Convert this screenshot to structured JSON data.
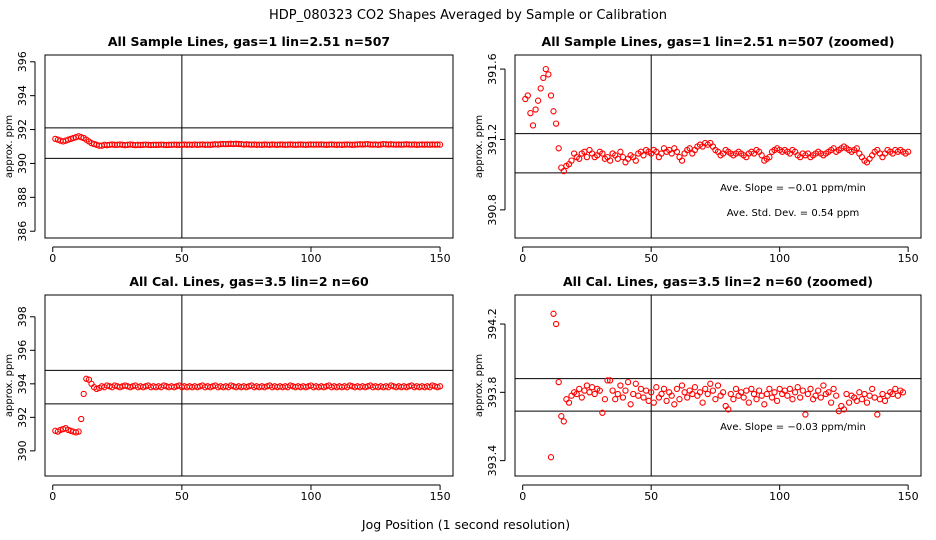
{
  "figure": {
    "title": "HDP_080323  CO2 Shapes Averaged by Sample or Calibration",
    "xlabel": "Jog Position (1 second resolution)"
  },
  "chart_data": [
    {
      "type": "scatter",
      "title": "All Sample Lines, gas=1 lin=2.51 n=507",
      "ylabel": "approx. ppm",
      "xlim": [
        -3,
        155
      ],
      "ylim": [
        385.6,
        396.4
      ],
      "xticks": [
        "0",
        "50",
        "100",
        "150"
      ],
      "yticks": [
        "386",
        "388",
        "390",
        "392",
        "394",
        "396"
      ],
      "hlines": [
        392.1,
        390.3
      ],
      "vline": 50,
      "color": "#ff0000",
      "series": [
        {
          "x_start": 1,
          "x_step": 1,
          "y": [
            391.45,
            391.4,
            391.35,
            391.3,
            391.35,
            391.4,
            391.45,
            391.5,
            391.55,
            391.6,
            391.55,
            391.5,
            391.4,
            391.3,
            391.2,
            391.15,
            391.1,
            391.05,
            391.05,
            391.1,
            391.08,
            391.1,
            391.12,
            391.1,
            391.1,
            391.12,
            391.1,
            391.08,
            391.1,
            391.12,
            391.1,
            391.08,
            391.1,
            391.09,
            391.1,
            391.11,
            391.1,
            391.09,
            391.1,
            391.1,
            391.1,
            391.11,
            391.1,
            391.09,
            391.1,
            391.1,
            391.11,
            391.1,
            391.1,
            391.1,
            391.12,
            391.1,
            391.11,
            391.1,
            391.12,
            391.1,
            391.11,
            391.12,
            391.1,
            391.11,
            391.1,
            391.12,
            391.13,
            391.12,
            391.14,
            391.15,
            391.14,
            391.15,
            391.16,
            391.15,
            391.16,
            391.15,
            391.14,
            391.12,
            391.13,
            391.12,
            391.11,
            391.12,
            391.1,
            391.11,
            391.1,
            391.12,
            391.11,
            391.1,
            391.12,
            391.11,
            391.1,
            391.12,
            391.11,
            391.1,
            391.11,
            391.12,
            391.11,
            391.1,
            391.11,
            391.12,
            391.11,
            391.1,
            391.11,
            391.12,
            391.11,
            391.12,
            391.11,
            391.12,
            391.11,
            391.1,
            391.11,
            391.12,
            391.11,
            391.1,
            391.11,
            391.1,
            391.11,
            391.12,
            391.11,
            391.1,
            391.11,
            391.12,
            391.13,
            391.12,
            391.13,
            391.14,
            391.12,
            391.11,
            391.12,
            391.1,
            391.12,
            391.14,
            391.13,
            391.12,
            391.13,
            391.12,
            391.11,
            391.12,
            391.11,
            391.12,
            391.13,
            391.12,
            391.11,
            391.12,
            391.1,
            391.11,
            391.12,
            391.11,
            391.12,
            391.11,
            391.12,
            391.11,
            391.12,
            391.11
          ]
        }
      ]
    },
    {
      "type": "scatter",
      "title": "All Sample Lines, gas=1 lin=2.51 n=507 (zoomed)",
      "ylabel": "approx. ppm",
      "xlim": [
        -3,
        155
      ],
      "ylim": [
        390.64,
        391.68
      ],
      "xticks": [
        "0",
        "50",
        "100",
        "150"
      ],
      "yticks": [
        "390.8",
        "391.2",
        "391.6"
      ],
      "hlines": [
        391.233,
        391.01
      ],
      "vline": 50,
      "color": "#ff0000",
      "annotations": [
        "Ave. Slope =  −0.01  ppm/min",
        "Ave. Std. Dev. =  0.54  ppm"
      ],
      "series": [
        {
          "x_start": 1,
          "x_step": 1,
          "y": [
            391.43,
            391.45,
            391.35,
            391.28,
            391.37,
            391.42,
            391.49,
            391.55,
            391.6,
            391.57,
            391.45,
            391.36,
            391.29,
            391.15,
            391.04,
            391.02,
            391.05,
            391.06,
            391.08,
            391.12,
            391.1,
            391.09,
            391.12,
            391.13,
            391.1,
            391.14,
            391.12,
            391.1,
            391.11,
            391.13,
            391.12,
            391.09,
            391.1,
            391.08,
            391.12,
            391.11,
            391.09,
            391.13,
            391.1,
            391.07,
            391.09,
            391.11,
            391.1,
            391.08,
            391.12,
            391.13,
            391.11,
            391.14,
            391.13,
            391.12,
            391.14,
            391.13,
            391.1,
            391.12,
            391.15,
            391.13,
            391.14,
            391.12,
            391.15,
            391.13,
            391.1,
            391.08,
            391.12,
            391.14,
            391.15,
            391.12,
            391.14,
            391.16,
            391.17,
            391.16,
            391.18,
            391.17,
            391.18,
            391.16,
            391.14,
            391.13,
            391.11,
            391.12,
            391.14,
            391.13,
            391.12,
            391.11,
            391.12,
            391.13,
            391.12,
            391.11,
            391.1,
            391.12,
            391.13,
            391.12,
            391.14,
            391.13,
            391.11,
            391.08,
            391.09,
            391.1,
            391.13,
            391.14,
            391.15,
            391.14,
            391.13,
            391.14,
            391.13,
            391.12,
            391.14,
            391.13,
            391.11,
            391.1,
            391.12,
            391.11,
            391.12,
            391.1,
            391.11,
            391.12,
            391.13,
            391.12,
            391.11,
            391.12,
            391.13,
            391.14,
            391.15,
            391.13,
            391.14,
            391.15,
            391.16,
            391.15,
            391.14,
            391.13,
            391.14,
            391.15,
            391.12,
            391.1,
            391.08,
            391.07,
            391.09,
            391.11,
            391.13,
            391.14,
            391.12,
            391.1,
            391.12,
            391.14,
            391.13,
            391.12,
            391.14,
            391.13,
            391.14,
            391.13,
            391.12,
            391.13
          ]
        }
      ]
    },
    {
      "type": "scatter",
      "title": "All Cal. Lines, gas=3.5 lin=2 n=60",
      "ylabel": "approx. ppm",
      "xlim": [
        -3,
        155
      ],
      "ylim": [
        388.5,
        399.3
      ],
      "xticks": [
        "0",
        "50",
        "100",
        "150"
      ],
      "yticks": [
        "390",
        "392",
        "394",
        "396",
        "398"
      ],
      "hlines": [
        394.8,
        392.8
      ],
      "vline": 50,
      "color": "#ff0000",
      "series": [
        {
          "x_start": 1,
          "x_step": 1,
          "y": [
            391.2,
            391.15,
            391.25,
            391.3,
            391.35,
            391.25,
            391.2,
            391.15,
            391.1,
            391.15,
            391.9,
            393.4,
            394.3,
            394.25,
            394.0,
            393.8,
            393.7,
            393.75,
            393.85,
            393.8,
            393.9,
            393.85,
            393.8,
            393.9,
            393.85,
            393.8,
            393.85,
            393.9,
            393.85,
            393.8,
            393.85,
            393.9,
            393.8,
            393.85,
            393.8,
            393.85,
            393.9,
            393.8,
            393.85,
            393.8,
            393.85,
            393.8,
            393.9,
            393.85,
            393.8,
            393.85,
            393.8,
            393.85,
            393.9,
            393.8,
            393.85,
            393.8,
            393.85,
            393.8,
            393.85,
            393.8,
            393.85,
            393.9,
            393.8,
            393.85,
            393.8,
            393.85,
            393.9,
            393.8,
            393.85,
            393.8,
            393.85,
            393.8,
            393.9,
            393.85,
            393.8,
            393.85,
            393.8,
            393.85,
            393.8,
            393.85,
            393.9,
            393.8,
            393.85,
            393.8,
            393.85,
            393.8,
            393.85,
            393.9,
            393.8,
            393.85,
            393.8,
            393.85,
            393.8,
            393.85,
            393.8,
            393.9,
            393.85,
            393.8,
            393.85,
            393.8,
            393.85,
            393.8,
            393.85,
            393.9,
            393.8,
            393.85,
            393.8,
            393.85,
            393.8,
            393.85,
            393.9,
            393.8,
            393.85,
            393.8,
            393.85,
            393.8,
            393.85,
            393.8,
            393.9,
            393.85,
            393.8,
            393.85,
            393.8,
            393.85,
            393.8,
            393.85,
            393.9,
            393.8,
            393.85,
            393.8,
            393.85,
            393.8,
            393.85,
            393.8,
            393.9,
            393.85,
            393.8,
            393.85,
            393.8,
            393.85,
            393.8,
            393.85,
            393.9,
            393.8,
            393.85,
            393.8,
            393.85,
            393.8,
            393.85,
            393.8,
            393.9,
            393.85,
            393.8,
            393.85
          ]
        }
      ]
    },
    {
      "type": "scatter",
      "title": "All Cal. Lines, gas=3.5 lin=2 n=60 (zoomed)",
      "ylabel": "approx. ppm",
      "xlim": [
        -3,
        155
      ],
      "ylim": [
        393.31,
        394.37
      ],
      "xticks": [
        "0",
        "50",
        "100",
        "150"
      ],
      "yticks": [
        "393.4",
        "393.8",
        "394.2"
      ],
      "hlines": [
        393.88,
        393.69
      ],
      "vline": 50,
      "color": "#ff0000",
      "annotations": [
        "Ave. Slope =  −0.03  ppm/min"
      ],
      "x_start": 11,
      "series": [
        {
          "x_start": 11,
          "x_step": 1,
          "y": [
            393.42,
            394.26,
            394.2,
            393.86,
            393.66,
            393.63,
            393.76,
            393.74,
            393.78,
            393.8,
            393.79,
            393.82,
            393.77,
            393.81,
            393.84,
            393.8,
            393.83,
            393.79,
            393.82,
            393.81,
            393.68,
            393.76,
            393.87,
            393.87,
            393.81,
            393.76,
            393.79,
            393.84,
            393.77,
            393.81,
            393.86,
            393.73,
            393.79,
            393.85,
            393.78,
            393.82,
            393.77,
            393.81,
            393.75,
            393.8,
            393.74,
            393.83,
            393.77,
            393.79,
            393.82,
            393.75,
            393.8,
            393.78,
            393.73,
            393.82,
            393.76,
            393.84,
            393.8,
            393.77,
            393.81,
            393.79,
            393.83,
            393.78,
            393.8,
            393.74,
            393.82,
            393.79,
            393.85,
            393.81,
            393.76,
            393.84,
            393.78,
            393.8,
            393.72,
            393.7,
            393.79,
            393.76,
            393.82,
            393.78,
            393.8,
            393.77,
            393.81,
            393.74,
            393.82,
            393.79,
            393.76,
            393.81,
            393.78,
            393.73,
            393.79,
            393.82,
            393.77,
            393.8,
            393.75,
            393.82,
            393.79,
            393.81,
            393.78,
            393.82,
            393.76,
            393.8,
            393.83,
            393.77,
            393.81,
            393.67,
            393.79,
            393.82,
            393.76,
            393.78,
            393.81,
            393.77,
            393.84,
            393.79,
            393.8,
            393.74,
            393.82,
            393.78,
            393.69,
            393.72,
            393.7,
            393.79,
            393.74,
            393.78,
            393.77,
            393.75,
            393.8,
            393.76,
            393.79,
            393.74,
            393.78,
            393.82,
            393.77,
            393.67,
            393.76,
            393.79,
            393.75,
            393.78,
            393.8,
            393.79,
            393.82,
            393.78,
            393.81,
            393.8
          ]
        }
      ]
    }
  ]
}
